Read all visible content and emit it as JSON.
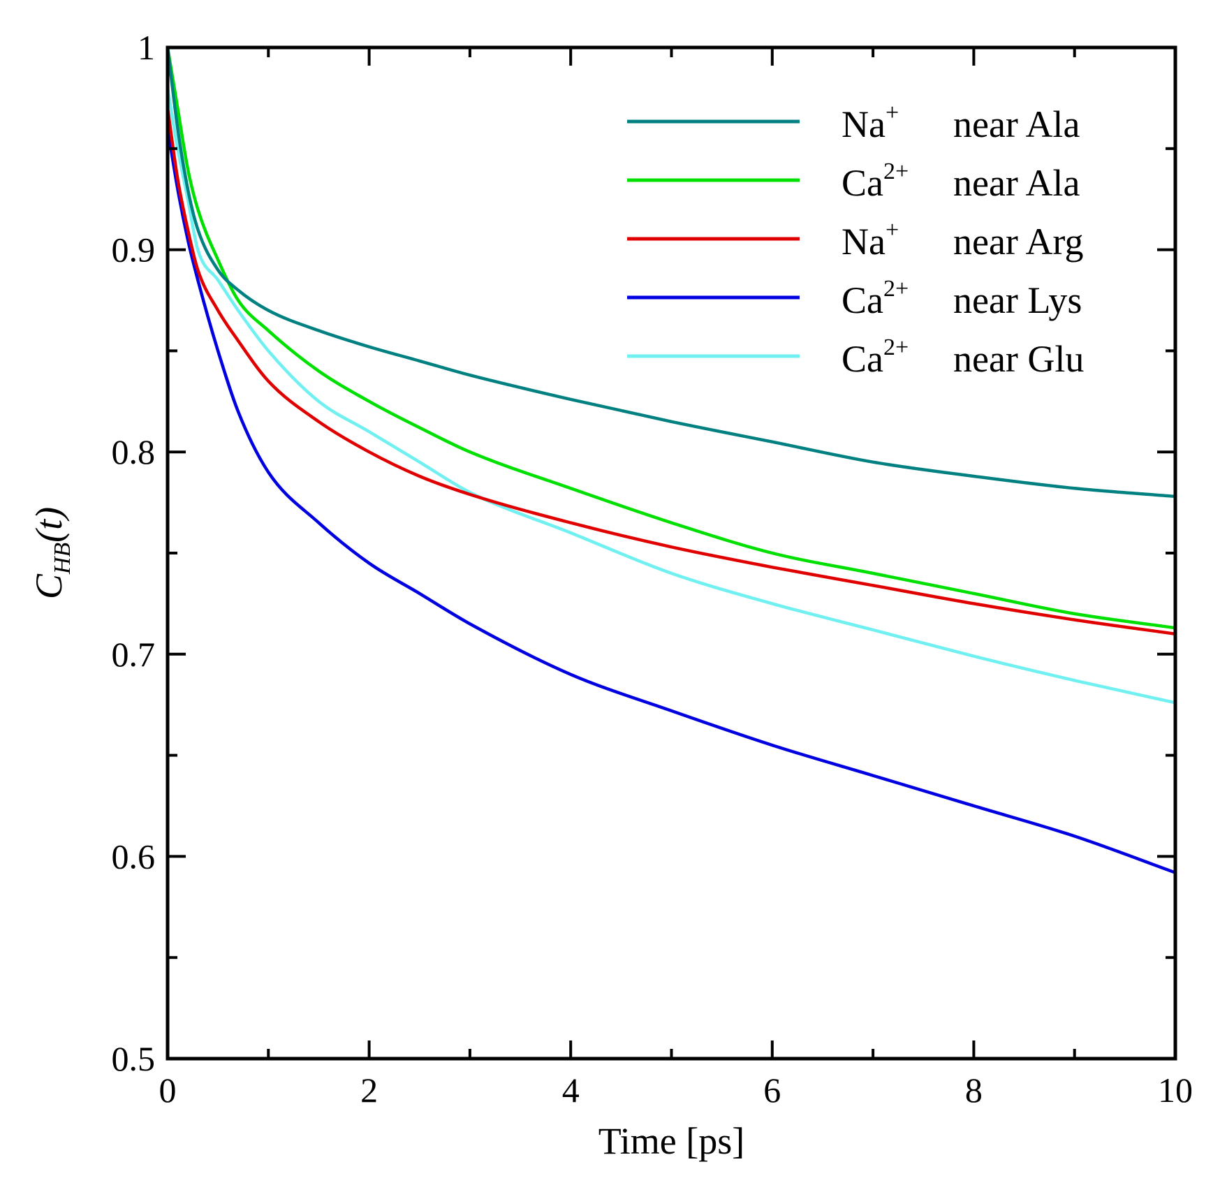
{
  "chart_data": {
    "type": "line",
    "title": "",
    "xlabel": "Time [ps]",
    "ylabel": {
      "main": "C",
      "sub": "HB",
      "arg": "(t)"
    },
    "xlim": [
      0,
      10
    ],
    "ylim": [
      0.5,
      1.0
    ],
    "xticks": [
      0,
      2,
      4,
      6,
      8,
      10
    ],
    "xtick_labels": [
      "0",
      "2",
      "4",
      "6",
      "8",
      "10"
    ],
    "yticks": [
      0.5,
      0.6,
      0.7,
      0.8,
      0.9,
      1.0
    ],
    "ytick_labels": [
      "0.5",
      "0.6",
      "0.7",
      "0.8",
      "0.9",
      "1"
    ],
    "grid": false,
    "legend_position": "top-right",
    "x": [
      0,
      0.1,
      0.2,
      0.3,
      0.5,
      0.7,
      1,
      1.5,
      2,
      2.5,
      3,
      4,
      5,
      6,
      7,
      8,
      9,
      10
    ],
    "series": [
      {
        "ion": "Na",
        "charge": "+",
        "residue": "near Ala",
        "color": "#008080",
        "values": [
          1.0,
          0.96,
          0.93,
          0.91,
          0.89,
          0.88,
          0.87,
          0.86,
          0.852,
          0.845,
          0.838,
          0.826,
          0.815,
          0.805,
          0.795,
          0.788,
          0.782,
          0.778
        ]
      },
      {
        "ion": "Ca",
        "charge": "2+",
        "residue": "near Ala",
        "color": "#00e000",
        "values": [
          1.0,
          0.97,
          0.94,
          0.92,
          0.895,
          0.875,
          0.86,
          0.84,
          0.825,
          0.812,
          0.8,
          0.782,
          0.765,
          0.75,
          0.74,
          0.73,
          0.72,
          0.713
        ]
      },
      {
        "ion": "Na",
        "charge": "+",
        "residue": "near Arg",
        "color": "#e00000",
        "values": [
          0.97,
          0.935,
          0.91,
          0.89,
          0.87,
          0.855,
          0.835,
          0.815,
          0.8,
          0.788,
          0.779,
          0.765,
          0.753,
          0.743,
          0.734,
          0.725,
          0.717,
          0.71
        ]
      },
      {
        "ion": "Ca",
        "charge": "2+",
        "residue": "near Lys",
        "color": "#0000e0",
        "values": [
          0.96,
          0.93,
          0.905,
          0.885,
          0.85,
          0.82,
          0.79,
          0.765,
          0.745,
          0.73,
          0.715,
          0.69,
          0.672,
          0.655,
          0.64,
          0.625,
          0.61,
          0.592
        ]
      },
      {
        "ion": "Ca",
        "charge": "2+",
        "residue": "near Glu",
        "color": "#70f0f0",
        "values": [
          0.98,
          0.95,
          0.925,
          0.9,
          0.885,
          0.87,
          0.85,
          0.825,
          0.81,
          0.795,
          0.78,
          0.76,
          0.74,
          0.725,
          0.712,
          0.699,
          0.687,
          0.676
        ]
      }
    ]
  }
}
